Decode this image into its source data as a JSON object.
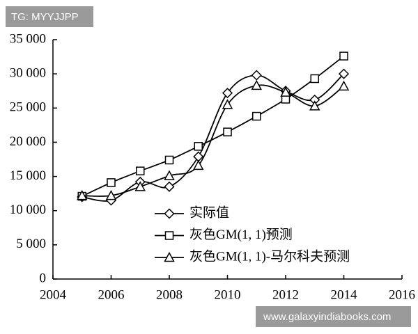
{
  "chart_data": {
    "type": "line",
    "smooth": true,
    "legend": "lower right",
    "x": [
      2005,
      2006,
      2007,
      2008,
      2009,
      2010,
      2011,
      2012,
      2013,
      2014
    ],
    "series": [
      {
        "name": "实际值",
        "color": "#000000",
        "marker": "diamond",
        "values": [
          12000,
          11500,
          14200,
          13500,
          17900,
          27200,
          29800,
          27500,
          26200,
          30000
        ]
      },
      {
        "name": "灰色GM(1, 1)预测",
        "color": "#000000",
        "marker": "square",
        "values": [
          12100,
          14100,
          15800,
          17400,
          19400,
          21500,
          23800,
          26300,
          29300,
          32600
        ]
      },
      {
        "name": "灰色GM(1, 1)-马尔科夫预测",
        "color": "#000000",
        "marker": "triangle",
        "values": [
          12200,
          12200,
          13500,
          15100,
          16600,
          25500,
          28300,
          27300,
          25300,
          28200
        ]
      }
    ],
    "xlim": [
      2004,
      2016
    ],
    "xticks": [
      2004,
      2006,
      2008,
      2010,
      2012,
      2014,
      2016
    ],
    "ylim": [
      0,
      35000
    ],
    "yticks": [
      0,
      {
        "value": 5000,
        "label": "5 000"
      },
      {
        "value": 10000,
        "label": "10 000"
      },
      {
        "value": 15000,
        "label": "15 000"
      },
      {
        "value": 20000,
        "label": "20 000"
      },
      {
        "value": 25000,
        "label": "25 000"
      },
      {
        "value": 30000,
        "label": "30 000"
      },
      {
        "value": 35000,
        "label": "35 000"
      }
    ]
  },
  "watermarks": [
    "TG: MYYJJPP",
    "www.galaxyindiabooks.com"
  ]
}
